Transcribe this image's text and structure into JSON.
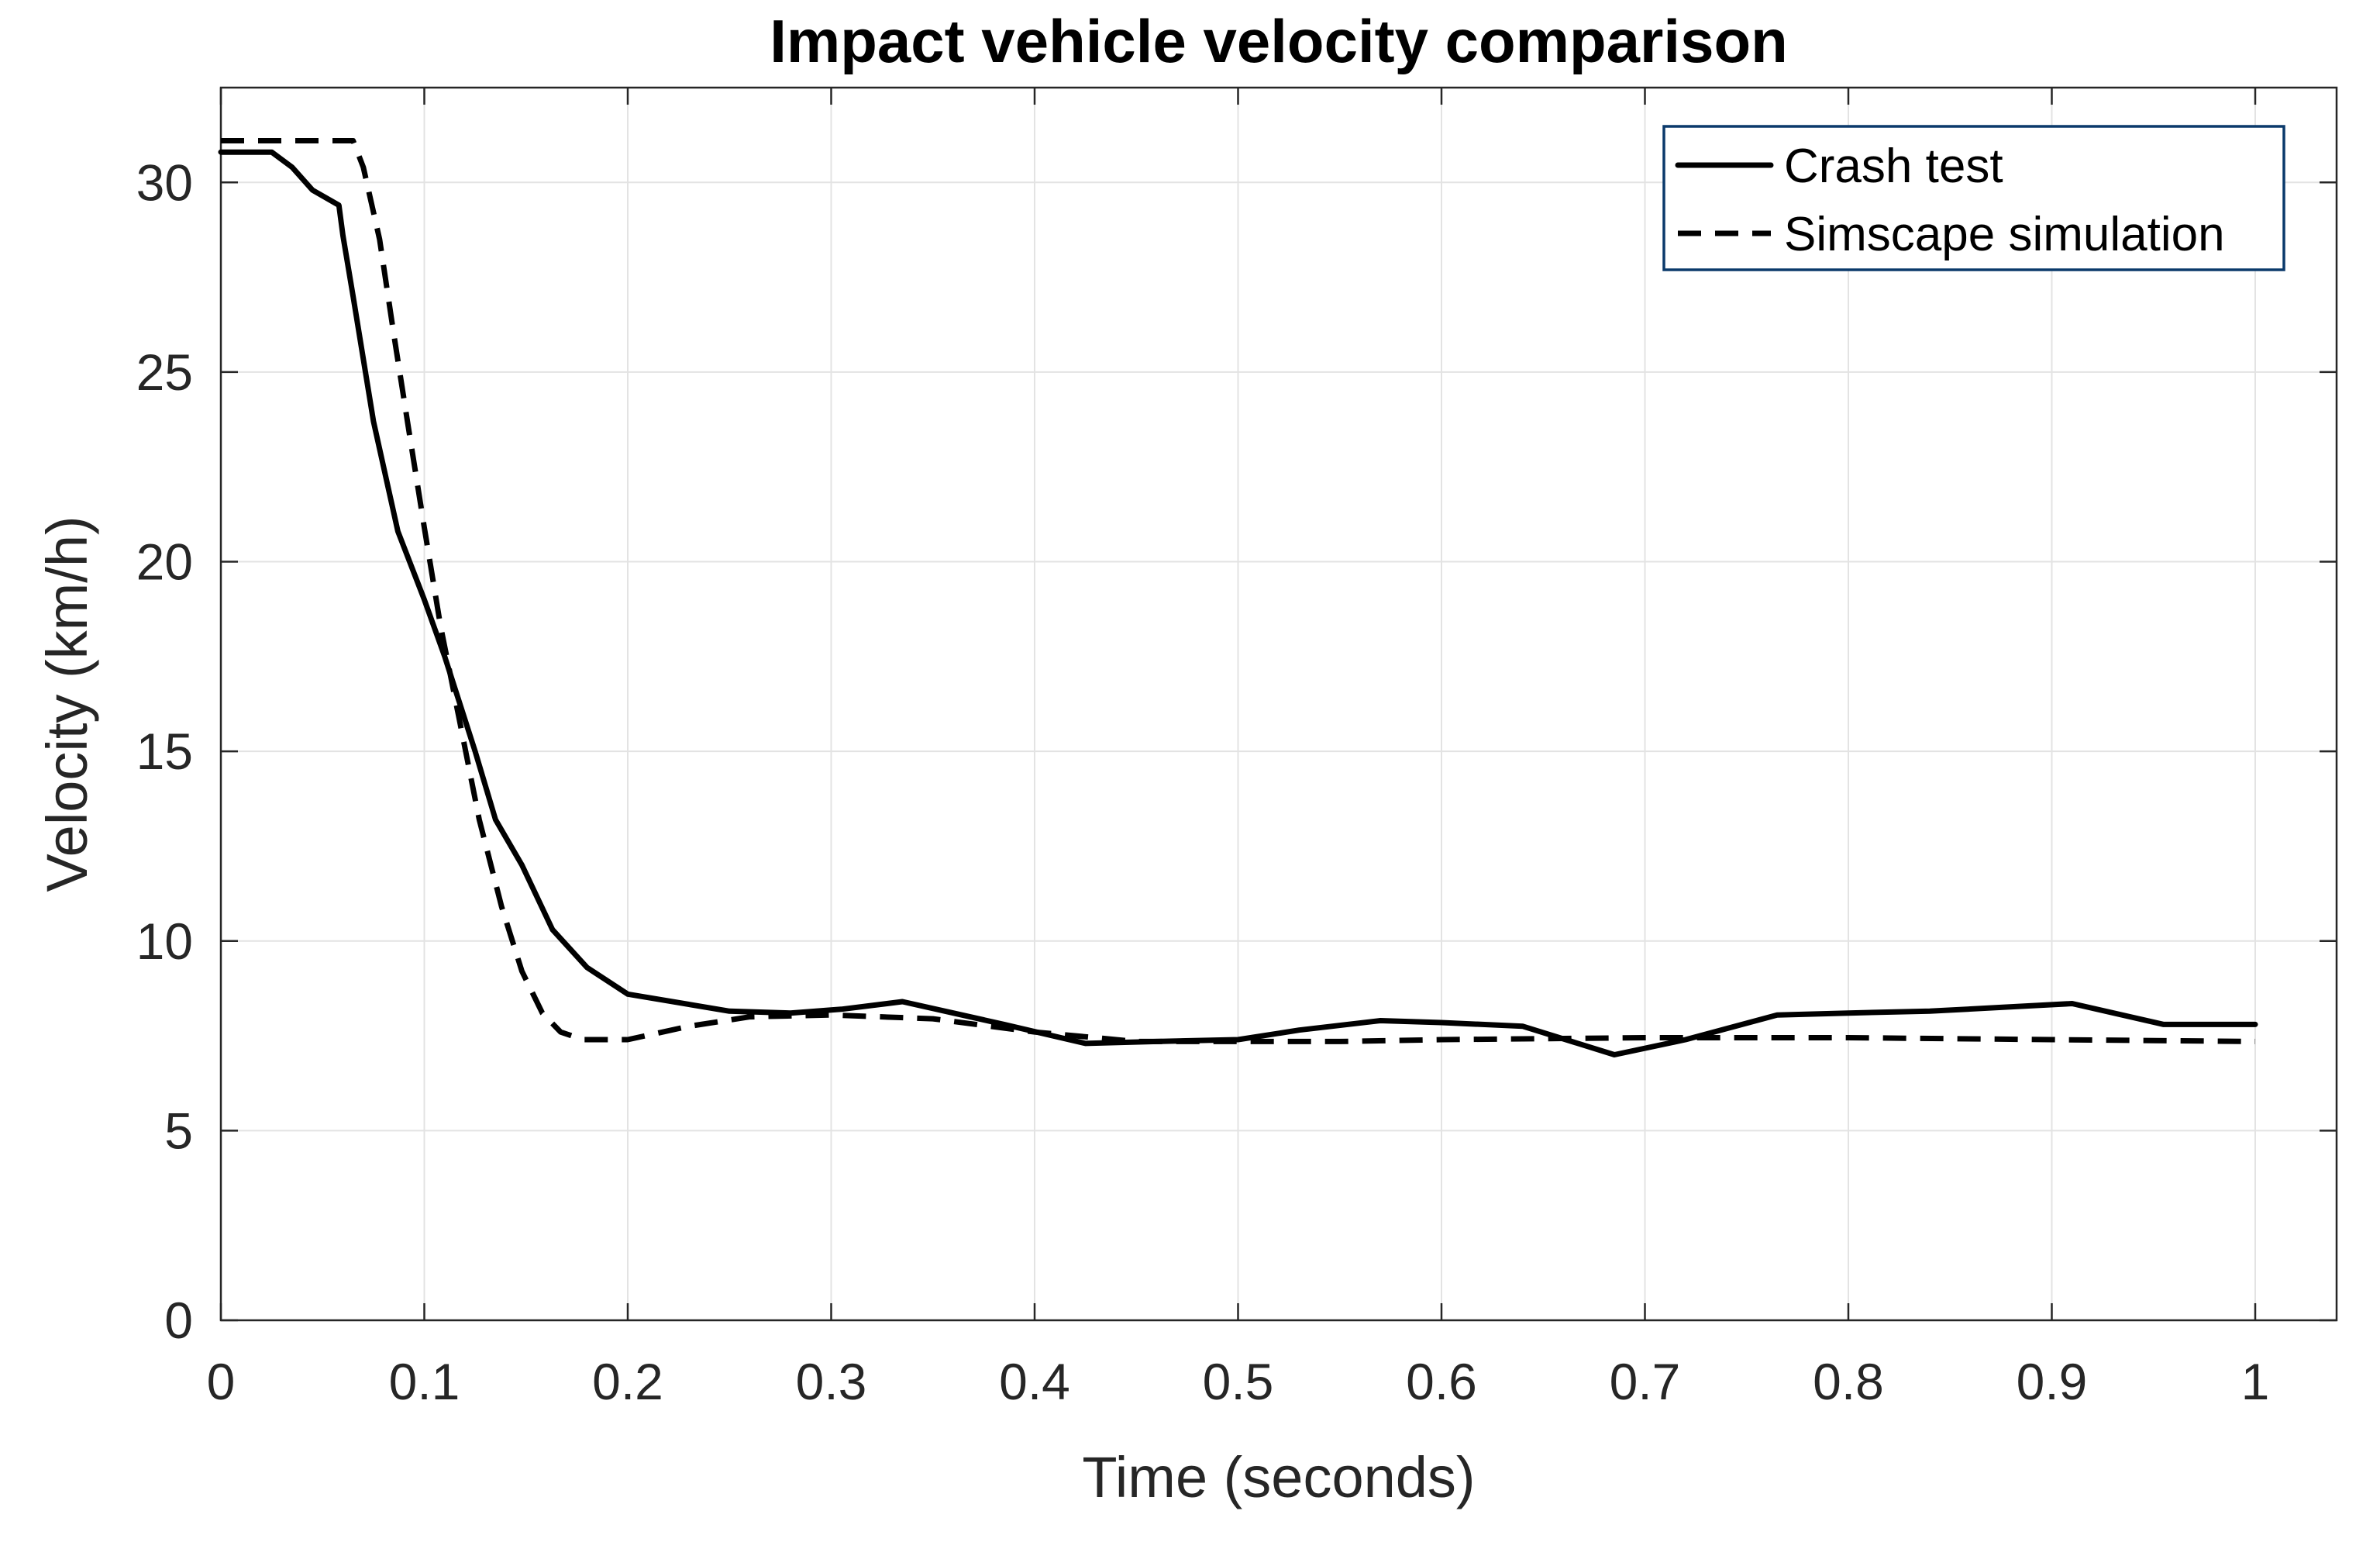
{
  "chart_data": {
    "type": "line",
    "title": "Impact vehicle velocity comparison",
    "xlabel": "Time (seconds)",
    "ylabel": "Velocity (km/h)",
    "xlim": [
      0,
      1.04
    ],
    "ylim": [
      0,
      32.5
    ],
    "xticks": [
      0,
      0.1,
      0.2,
      0.3,
      0.4,
      0.5,
      0.6,
      0.7,
      0.8,
      0.9,
      1
    ],
    "xtick_labels": [
      "0",
      "0.1",
      "0.2",
      "0.3",
      "0.4",
      "0.5",
      "0.6",
      "0.7",
      "0.8",
      "0.9",
      "1"
    ],
    "yticks": [
      0,
      5,
      10,
      15,
      20,
      25,
      30
    ],
    "ytick_labels": [
      "0",
      "5",
      "10",
      "15",
      "20",
      "25",
      "30"
    ],
    "grid": true,
    "legend_position": "top-right",
    "series": [
      {
        "name": "Crash test",
        "style": "solid",
        "color": "#000000",
        "x": [
          0,
          0.025,
          0.035,
          0.045,
          0.058,
          0.06,
          0.065,
          0.075,
          0.087,
          0.1,
          0.11,
          0.125,
          0.135,
          0.148,
          0.163,
          0.18,
          0.2,
          0.25,
          0.28,
          0.305,
          0.335,
          0.36,
          0.385,
          0.425,
          0.46,
          0.5,
          0.53,
          0.57,
          0.6,
          0.64,
          0.685,
          0.72,
          0.765,
          0.8,
          0.84,
          0.875,
          0.91,
          0.955,
          1.0
        ],
        "y": [
          30.8,
          30.8,
          30.4,
          29.8,
          29.4,
          28.6,
          27.0,
          23.7,
          20.8,
          19.0,
          17.5,
          15.0,
          13.2,
          12.0,
          10.3,
          9.3,
          8.6,
          8.15,
          8.1,
          8.2,
          8.4,
          8.1,
          7.8,
          7.3,
          7.35,
          7.4,
          7.65,
          7.9,
          7.85,
          7.75,
          7.0,
          7.4,
          8.05,
          8.1,
          8.15,
          8.25,
          8.35,
          7.8,
          7.8
        ]
      },
      {
        "name": "Simscape simulation",
        "style": "dashed",
        "color": "#000000",
        "x": [
          0,
          0.065,
          0.07,
          0.078,
          0.085,
          0.092,
          0.1,
          0.108,
          0.117,
          0.127,
          0.138,
          0.148,
          0.158,
          0.167,
          0.178,
          0.2,
          0.23,
          0.26,
          0.3,
          0.35,
          0.4,
          0.45,
          0.5,
          0.55,
          0.6,
          0.7,
          0.8,
          0.9,
          1.0
        ],
        "y": [
          31.1,
          31.1,
          30.4,
          28.5,
          26.0,
          23.6,
          20.9,
          18.3,
          15.9,
          13.2,
          10.9,
          9.2,
          8.1,
          7.6,
          7.4,
          7.4,
          7.75,
          8.0,
          8.05,
          7.95,
          7.6,
          7.35,
          7.35,
          7.35,
          7.4,
          7.45,
          7.45,
          7.4,
          7.35
        ]
      }
    ]
  }
}
